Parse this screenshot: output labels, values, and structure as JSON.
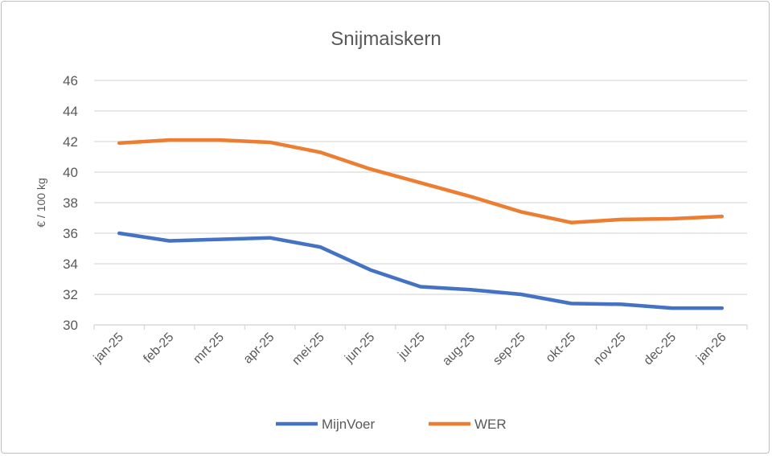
{
  "chart_data": {
    "type": "line",
    "title": "Snijmaiskern",
    "xlabel": "",
    "ylabel": "€ / 100 kg",
    "ylim": [
      30,
      46
    ],
    "yticks": [
      "30",
      "32",
      "34",
      "36",
      "38",
      "40",
      "42",
      "44",
      "46"
    ],
    "grid": true,
    "legend_position": "bottom",
    "categories": [
      "jan-25",
      "feb-25",
      "mrt-25",
      "apr-25",
      "mei-25",
      "jun-25",
      "jul-25",
      "aug-25",
      "sep-25",
      "okt-25",
      "nov-25",
      "dec-25",
      "jan-26"
    ],
    "series": [
      {
        "name": "MijnVoer",
        "color": "#4472c4",
        "values": [
          36.0,
          35.5,
          35.6,
          35.7,
          35.1,
          33.6,
          32.5,
          32.3,
          32.0,
          31.4,
          31.35,
          31.1,
          31.1
        ]
      },
      {
        "name": "WER",
        "color": "#ed7d31",
        "values": [
          41.9,
          42.1,
          42.1,
          41.95,
          41.3,
          40.2,
          39.3,
          38.4,
          37.4,
          36.7,
          36.9,
          36.95,
          37.1
        ]
      }
    ]
  }
}
